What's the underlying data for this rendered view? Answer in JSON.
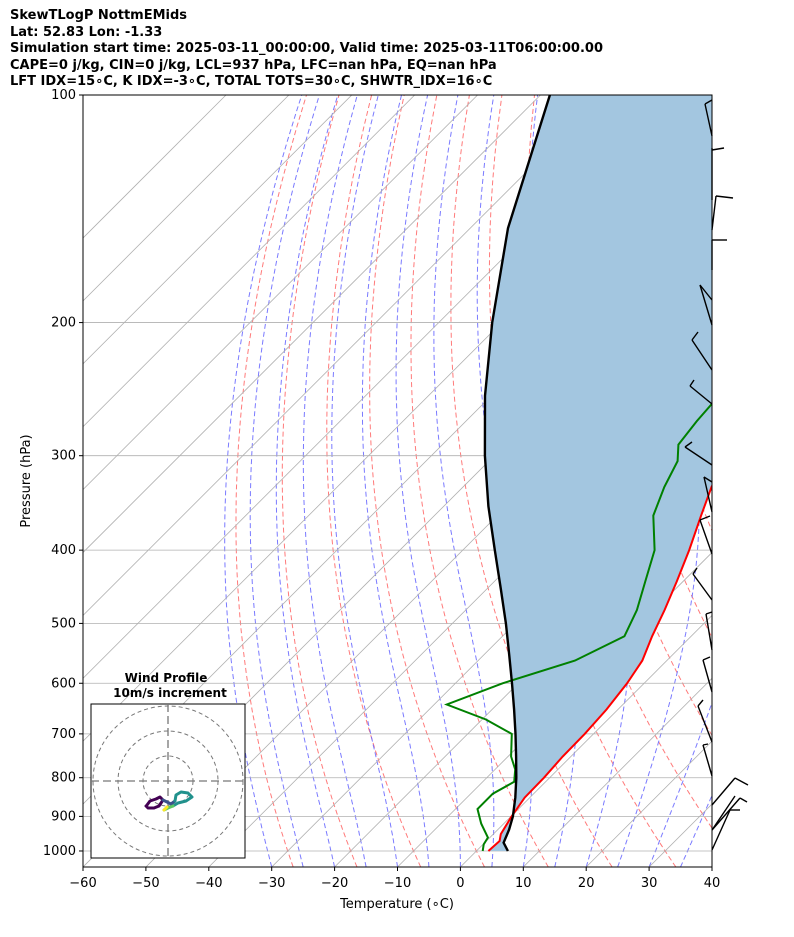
{
  "header": {
    "line1": "SkewTLogP NottmEMids",
    "line2": "Lat: 52.83   Lon: -1.33",
    "line3": "Simulation start time: 2025-03-11_00:00:00, Valid time: 2025-03-11T06:00:00.00",
    "line4": "CAPE=0 j/kg, CIN=0 j/kg, LCL=937 hPa, LFC=nan hPa, EQ=nan hPa",
    "line5": "LFT IDX=15∘C, K IDX=-3∘C, TOTAL TOTS=30∘C, SHWTR_IDX=16∘C"
  },
  "chart_data": {
    "type": "line",
    "xlabel": "Temperature (∘C)",
    "ylabel": "Pressure (hPa)",
    "xlim": [
      -60,
      40
    ],
    "ylim": [
      1050,
      100
    ],
    "y_scale": "log",
    "x_ticks": [
      "−60",
      "−50",
      "−40",
      "−30",
      "−20",
      "−10",
      "0",
      "10",
      "20",
      "30",
      "40"
    ],
    "y_ticks": [
      "100",
      "200",
      "300",
      "400",
      "500",
      "600",
      "700",
      "800",
      "900",
      "1000"
    ],
    "grid": true,
    "colors": {
      "temperature": "#ff0000",
      "dewpoint": "#008000",
      "parcel": "#000000",
      "shading": "#a3c6e0",
      "dry_adiabat": "#ff6b6b",
      "moist_adiabat": "#6b6bff",
      "mixing_ratio": "#b0b0b0",
      "wind_barb": "#000000"
    },
    "series": [
      {
        "key": "temperature",
        "points": [
          [
            1000,
            1.9
          ],
          [
            970,
            2.1
          ],
          [
            950,
            1.2
          ],
          [
            900,
            0.1
          ],
          [
            850,
            -0.8
          ],
          [
            800,
            -0.9
          ],
          [
            750,
            -1.3
          ],
          [
            700,
            -1.4
          ],
          [
            650,
            -1.8
          ],
          [
            600,
            -2.7
          ],
          [
            560,
            -3.9
          ],
          [
            520,
            -6.2
          ],
          [
            480,
            -8.4
          ],
          [
            440,
            -11.0
          ],
          [
            400,
            -14.0
          ],
          [
            360,
            -17.6
          ],
          [
            330,
            -20.5
          ],
          [
            310,
            -22.0
          ],
          [
            290,
            -22.9
          ],
          [
            275,
            -22.3
          ],
          [
            250,
            -20.5
          ],
          [
            230,
            -19.0
          ],
          [
            210,
            -17.6
          ],
          [
            195,
            -17.4
          ],
          [
            180,
            -15.6
          ],
          [
            165,
            -13.8
          ],
          [
            150,
            -12.8
          ],
          [
            130,
            -10.2
          ],
          [
            118,
            -9.6
          ],
          [
            100,
            -12.5
          ]
        ]
      },
      {
        "key": "dewpoint",
        "points": [
          [
            1000,
            1.0
          ],
          [
            980,
            0.1
          ],
          [
            960,
            -0.3
          ],
          [
            920,
            -3.6
          ],
          [
            880,
            -6.5
          ],
          [
            840,
            -6.5
          ],
          [
            810,
            -5.0
          ],
          [
            780,
            -6.8
          ],
          [
            750,
            -9.5
          ],
          [
            700,
            -13.0
          ],
          [
            670,
            -19.4
          ],
          [
            640,
            -28.0
          ],
          [
            600,
            -22.5
          ],
          [
            560,
            -14.6
          ],
          [
            520,
            -10.6
          ],
          [
            480,
            -12.8
          ],
          [
            440,
            -16.0
          ],
          [
            400,
            -19.5
          ],
          [
            360,
            -25.2
          ],
          [
            330,
            -28.0
          ],
          [
            305,
            -30.0
          ],
          [
            290,
            -32.5
          ],
          [
            270,
            -33.3
          ],
          [
            250,
            -33.8
          ],
          [
            230,
            -35.4
          ],
          [
            210,
            -37.4
          ],
          [
            190,
            -40.3
          ],
          [
            170,
            -45.8
          ],
          [
            160,
            -48.2
          ],
          [
            140,
            -49.0
          ],
          [
            120,
            -51.0
          ],
          [
            100,
            -55.0
          ]
        ]
      },
      {
        "key": "parcel",
        "points": [
          [
            1000,
            5.0
          ],
          [
            975,
            3.0
          ],
          [
            937,
            1.8
          ],
          [
            900,
            0.3
          ],
          [
            850,
            -2.3
          ],
          [
            800,
            -5.3
          ],
          [
            750,
            -8.7
          ],
          [
            700,
            -12.4
          ],
          [
            650,
            -16.5
          ],
          [
            600,
            -21.0
          ],
          [
            550,
            -26.0
          ],
          [
            500,
            -31.5
          ],
          [
            450,
            -37.8
          ],
          [
            400,
            -44.9
          ],
          [
            350,
            -52.9
          ],
          [
            300,
            -61.5
          ],
          [
            250,
            -71.0
          ],
          [
            200,
            -81.5
          ],
          [
            150,
            -94.0
          ],
          [
            100,
            -108.5
          ]
        ]
      }
    ],
    "legend": {
      "hodograph_title": "Wind Profile",
      "hodograph_subtitle": "10m/s increment"
    }
  }
}
